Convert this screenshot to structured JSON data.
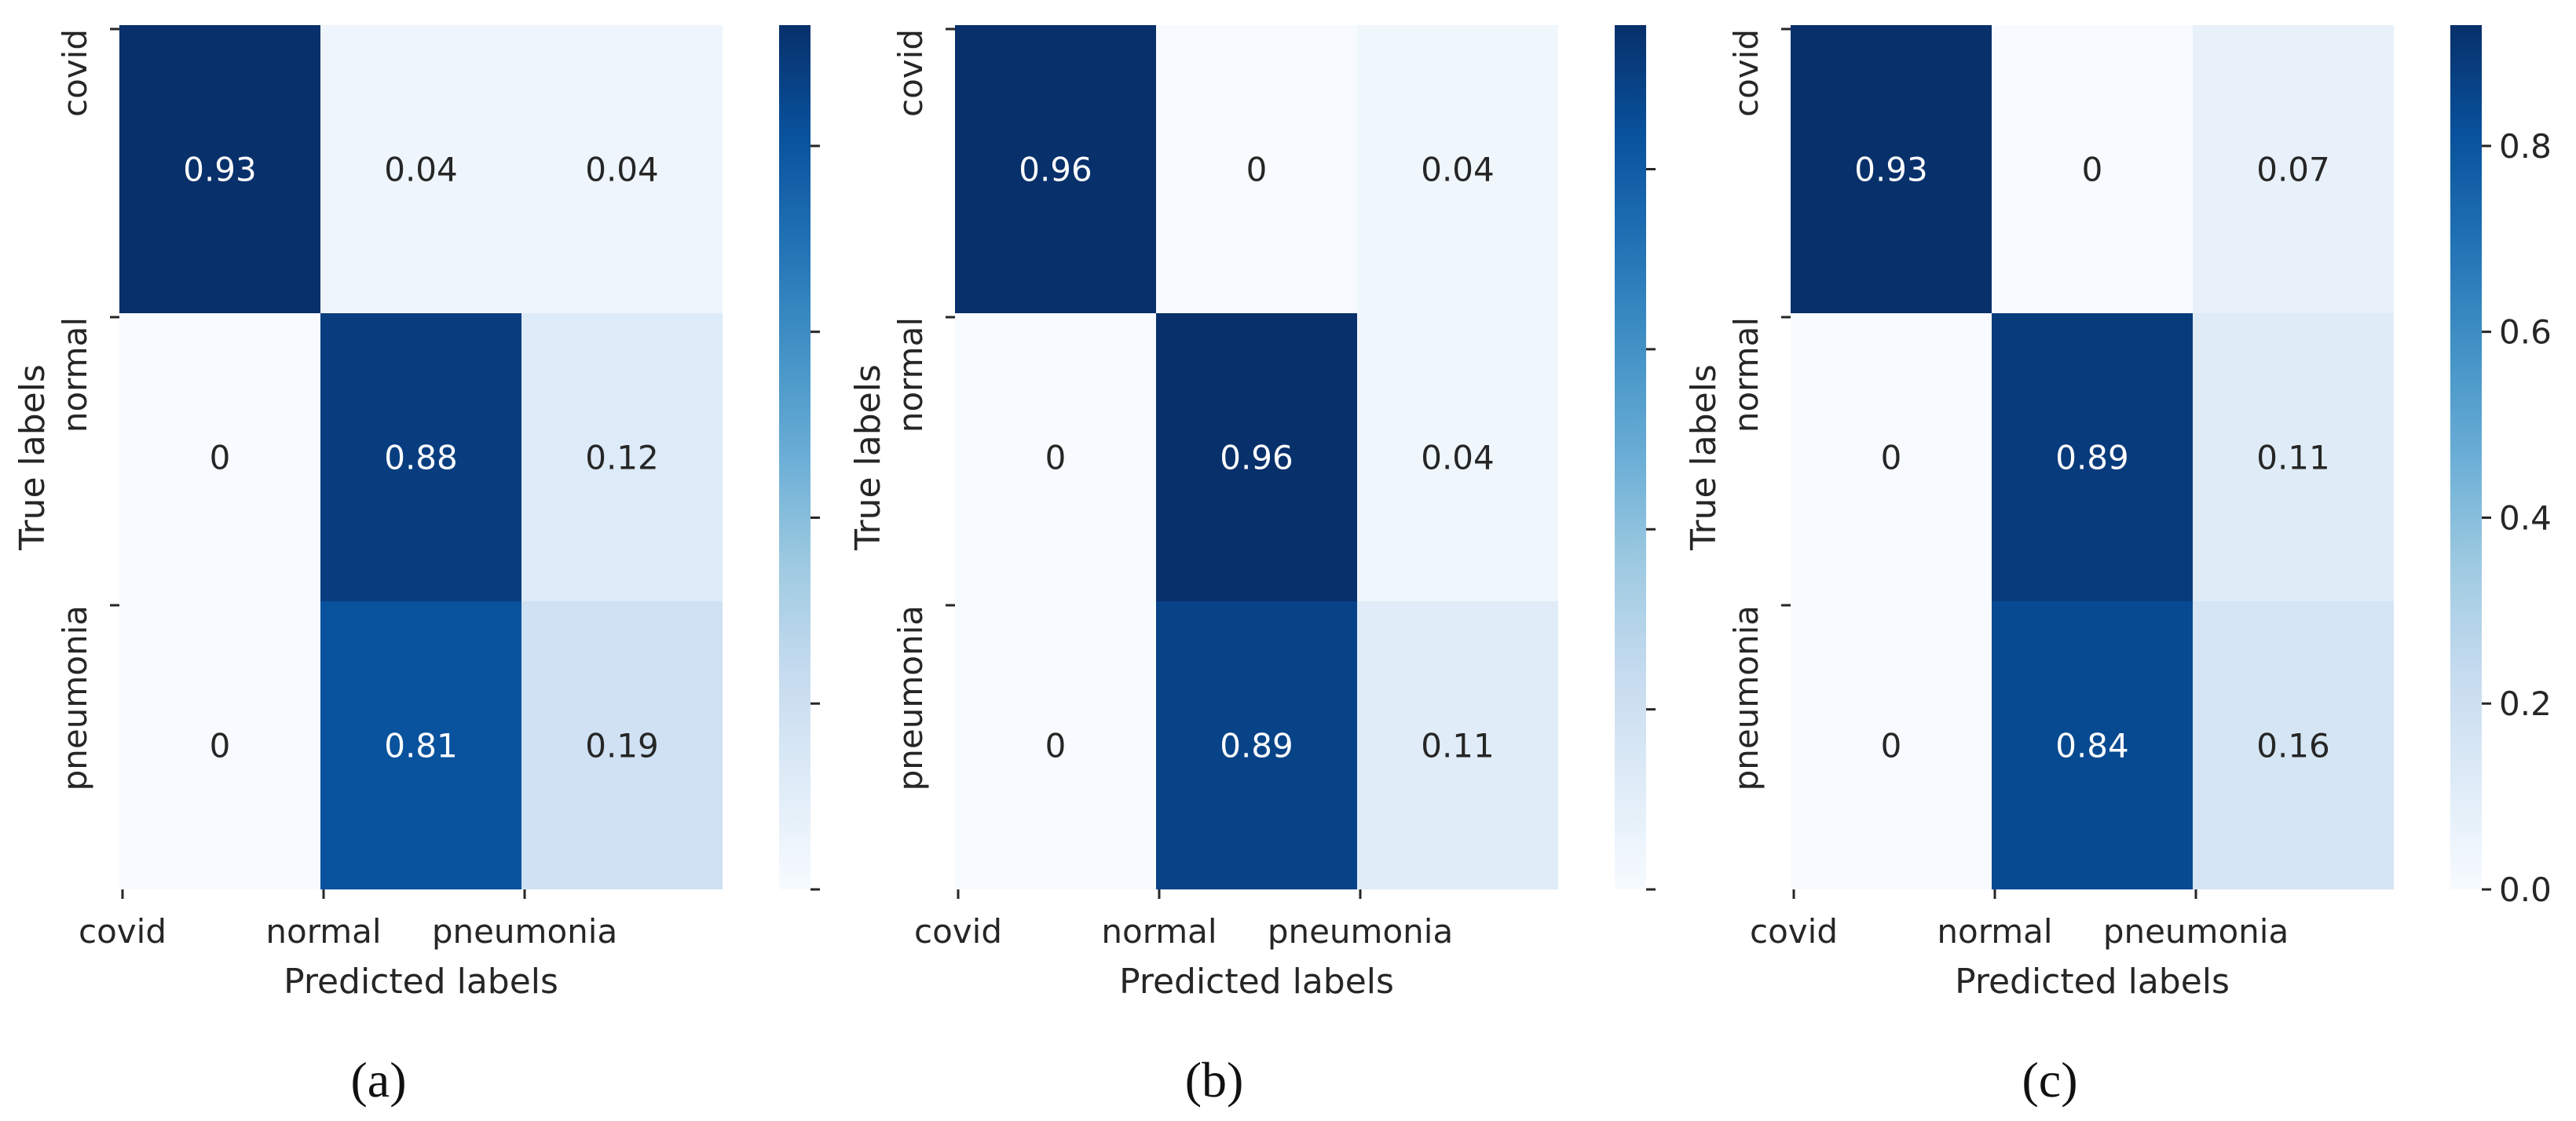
{
  "chart_data": [
    {
      "type": "heatmap",
      "panel_label": "(a)",
      "row_labels": [
        "covid",
        "normal",
        "pneumonia"
      ],
      "col_labels": [
        "covid",
        "normal",
        "pneumonia"
      ],
      "values": [
        [
          0.93,
          0.04,
          0.04
        ],
        [
          0,
          0.88,
          0.12
        ],
        [
          0,
          0.81,
          0.19
        ]
      ],
      "cell_text": [
        [
          "0.93",
          "0.04",
          "0.04"
        ],
        [
          "0",
          "0.88",
          "0.12"
        ],
        [
          "0",
          "0.81",
          "0.19"
        ]
      ],
      "xlabel": "Predicted labels",
      "ylabel": "True labels",
      "colormap": "Blues",
      "colorbar": {
        "range": [
          0,
          0.93
        ],
        "ticks": [
          0,
          0.2,
          0.4,
          0.6,
          0.8
        ],
        "tick_labels": []
      }
    },
    {
      "type": "heatmap",
      "panel_label": "(b)",
      "row_labels": [
        "covid",
        "normal",
        "pneumonia"
      ],
      "col_labels": [
        "covid",
        "normal",
        "pneumonia"
      ],
      "values": [
        [
          0.96,
          0,
          0.04
        ],
        [
          0,
          0.96,
          0.04
        ],
        [
          0,
          0.89,
          0.11
        ]
      ],
      "cell_text": [
        [
          "0.96",
          "0",
          "0.04"
        ],
        [
          "0",
          "0.96",
          "0.04"
        ],
        [
          "0",
          "0.89",
          "0.11"
        ]
      ],
      "xlabel": "Predicted labels",
      "ylabel": "True labels",
      "colormap": "Blues",
      "colorbar": {
        "range": [
          0,
          0.96
        ],
        "ticks": [
          0,
          0.2,
          0.4,
          0.6,
          0.8
        ],
        "tick_labels": []
      }
    },
    {
      "type": "heatmap",
      "panel_label": "(c)",
      "row_labels": [
        "covid",
        "normal",
        "pneumonia"
      ],
      "col_labels": [
        "covid",
        "normal",
        "pneumonia"
      ],
      "values": [
        [
          0.93,
          0,
          0.07
        ],
        [
          0,
          0.89,
          0.11
        ],
        [
          0,
          0.84,
          0.16
        ]
      ],
      "cell_text": [
        [
          "0.93",
          "0",
          "0.07"
        ],
        [
          "0",
          "0.89",
          "0.11"
        ],
        [
          "0",
          "0.84",
          "0.16"
        ]
      ],
      "xlabel": "Predicted labels",
      "ylabel": "True labels",
      "colormap": "Blues",
      "colorbar": {
        "range": [
          0,
          0.93
        ],
        "ticks": [
          0,
          0.2,
          0.4,
          0.6,
          0.8
        ],
        "tick_labels": [
          "0.0",
          "0.2",
          "0.4",
          "0.6",
          "0.8"
        ]
      }
    }
  ],
  "colors": {
    "light": "#f7fbff",
    "dark": "#08306b",
    "ink": "#262626",
    "caption": "#111111"
  }
}
